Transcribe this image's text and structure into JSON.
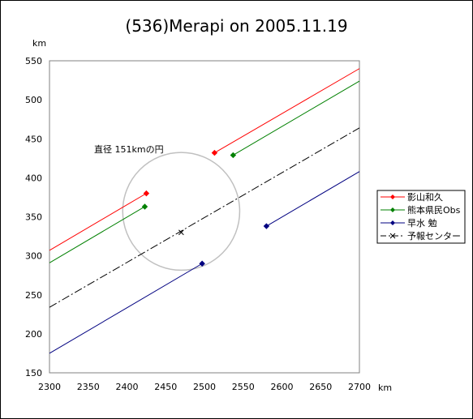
{
  "chart_data": {
    "type": "line",
    "title": "(536)Merapi on 2005.11.19",
    "x_unit": "km",
    "y_unit": "km",
    "xlim": [
      2300,
      2700
    ],
    "ylim": [
      150,
      550
    ],
    "x_ticks": [
      "2300",
      "2350",
      "2400",
      "2450",
      "2500",
      "2550",
      "2600",
      "2650",
      "2700"
    ],
    "y_ticks": [
      "150",
      "200",
      "250",
      "300",
      "350",
      "400",
      "450",
      "500",
      "550"
    ],
    "circle": {
      "cx": 2470,
      "cy": 357,
      "r": 75.5,
      "label": "直径 151kmの円",
      "color": "#c0c0c0"
    },
    "center_marker": {
      "x": 2470,
      "y": 330
    },
    "series": [
      {
        "name": "影山和久",
        "color": "#ff0000",
        "segments": [
          [
            [
              2300,
              307
            ],
            [
              2425,
              380
            ]
          ],
          [
            [
              2513,
              432
            ],
            [
              2700,
              540
            ]
          ]
        ],
        "points": [
          [
            2425,
            380
          ],
          [
            2513,
            432
          ]
        ]
      },
      {
        "name": "熊本県民Obs",
        "color": "#008000",
        "segments": [
          [
            [
              2300,
              291
            ],
            [
              2423,
              363
            ]
          ],
          [
            [
              2537,
              429
            ],
            [
              2700,
              524
            ]
          ]
        ],
        "points": [
          [
            2423,
            363
          ],
          [
            2537,
            429
          ]
        ]
      },
      {
        "name": "早水 勉",
        "color": "#000080",
        "segments": [
          [
            [
              2300,
              175
            ],
            [
              2497,
              290
            ]
          ],
          [
            [
              2580,
              338
            ],
            [
              2700,
              408
            ]
          ]
        ],
        "points": [
          [
            2497,
            290
          ],
          [
            2580,
            338
          ]
        ]
      },
      {
        "name": "予報センター",
        "color": "#000000",
        "dash": true,
        "segments": [
          [
            [
              2300,
              234
            ],
            [
              2700,
              464
            ]
          ]
        ],
        "points": []
      }
    ],
    "grid": false,
    "legend_position": "right"
  }
}
